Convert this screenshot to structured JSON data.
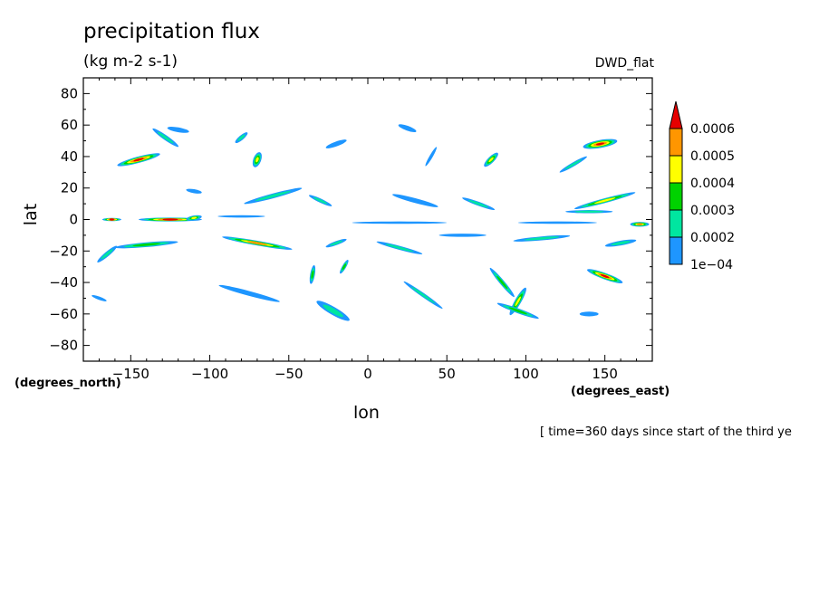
{
  "chart_data": {
    "type": "heatmap",
    "title": "precipitation flux",
    "units": "(kg m-2 s-1)",
    "dataset_label": "DWD_flat",
    "xlabel": "lon",
    "ylabel": "lat",
    "x_units_label": "(degrees_east)",
    "y_units_label": "(degrees_north)",
    "footnote": "[ time=360 days since start of the third ye",
    "xlim": [
      -180,
      180
    ],
    "ylim": [
      -90,
      90
    ],
    "x_ticks": [
      -150,
      -100,
      -50,
      0,
      50,
      100,
      150
    ],
    "y_ticks": [
      80,
      60,
      40,
      20,
      0,
      -20,
      -40,
      -60,
      -80
    ],
    "x_tick_labels": [
      "−150",
      "−100",
      "−50",
      "0",
      "50",
      "100",
      "150"
    ],
    "y_tick_labels": [
      "80",
      "60",
      "40",
      "20",
      "0",
      "−20",
      "−40",
      "−60",
      "−80"
    ],
    "colorbar": {
      "levels": [
        "1e−04",
        "0.0002",
        "0.0003",
        "0.0004",
        "0.0005",
        "0.0006"
      ],
      "colors": [
        "#1e96ff",
        "#00e6a0",
        "#00d200",
        "#ffff00",
        "#ff9600",
        "#e60000"
      ]
    },
    "features": [
      {
        "lon": -145,
        "lat": 38,
        "len": 28,
        "wid": 4,
        "ang": 15,
        "peak": 5
      },
      {
        "lon": -128,
        "lat": 52,
        "len": 20,
        "wid": 3,
        "ang": -35,
        "peak": 1
      },
      {
        "lon": -120,
        "lat": 57,
        "len": 14,
        "wid": 3,
        "ang": -10,
        "peak": 0
      },
      {
        "lon": -80,
        "lat": 52,
        "len": 10,
        "wid": 3,
        "ang": 40,
        "peak": 1
      },
      {
        "lon": -70,
        "lat": 38,
        "len": 10,
        "wid": 5,
        "ang": 70,
        "peak": 3
      },
      {
        "lon": -20,
        "lat": 48,
        "len": 14,
        "wid": 3,
        "ang": 20,
        "peak": 0
      },
      {
        "lon": 25,
        "lat": 58,
        "len": 12,
        "wid": 3,
        "ang": -20,
        "peak": 0
      },
      {
        "lon": 40,
        "lat": 40,
        "len": 14,
        "wid": 2,
        "ang": 60,
        "peak": 0
      },
      {
        "lon": 78,
        "lat": 38,
        "len": 12,
        "wid": 4,
        "ang": 45,
        "peak": 3
      },
      {
        "lon": 147,
        "lat": 48,
        "len": 22,
        "wid": 5,
        "ang": 10,
        "peak": 5
      },
      {
        "lon": 130,
        "lat": 35,
        "len": 20,
        "wid": 2.5,
        "ang": 30,
        "peak": 1
      },
      {
        "lon": -110,
        "lat": 18,
        "len": 10,
        "wid": 2.5,
        "ang": -10,
        "peak": 0
      },
      {
        "lon": -60,
        "lat": 15,
        "len": 38,
        "wid": 3,
        "ang": 15,
        "peak": 1
      },
      {
        "lon": -30,
        "lat": 12,
        "len": 16,
        "wid": 2.5,
        "ang": -25,
        "peak": 1
      },
      {
        "lon": 30,
        "lat": 12,
        "len": 30,
        "wid": 3,
        "ang": -15,
        "peak": 0
      },
      {
        "lon": 70,
        "lat": 10,
        "len": 22,
        "wid": 2.5,
        "ang": -20,
        "peak": 1
      },
      {
        "lon": 150,
        "lat": 12,
        "len": 40,
        "wid": 3,
        "ang": 15,
        "peak": 3
      },
      {
        "lon": 140,
        "lat": 5,
        "len": 30,
        "wid": 2,
        "ang": 0,
        "peak": 1
      },
      {
        "lon": -125,
        "lat": 0,
        "len": 40,
        "wid": 2.5,
        "ang": 0,
        "peak": 5
      },
      {
        "lon": -162,
        "lat": 0,
        "len": 12,
        "wid": 2,
        "ang": 0,
        "peak": 5
      },
      {
        "lon": -110,
        "lat": 1,
        "len": 10,
        "wid": 3,
        "ang": 10,
        "peak": 3
      },
      {
        "lon": 20,
        "lat": -2,
        "len": 60,
        "wid": 1.5,
        "ang": 0,
        "peak": 0
      },
      {
        "lon": 120,
        "lat": -2,
        "len": 50,
        "wid": 1.5,
        "ang": 0,
        "peak": 0
      },
      {
        "lon": -80,
        "lat": 2,
        "len": 30,
        "wid": 1.5,
        "ang": 0,
        "peak": 0
      },
      {
        "lon": 172,
        "lat": -3,
        "len": 12,
        "wid": 3,
        "ang": 0,
        "peak": 4
      },
      {
        "lon": -140,
        "lat": -16,
        "len": 40,
        "wid": 3,
        "ang": 5,
        "peak": 2
      },
      {
        "lon": -165,
        "lat": -22,
        "len": 16,
        "wid": 3,
        "ang": 40,
        "peak": 1
      },
      {
        "lon": -70,
        "lat": -15,
        "len": 45,
        "wid": 3,
        "ang": -10,
        "peak": 4
      },
      {
        "lon": -20,
        "lat": -15,
        "len": 14,
        "wid": 2.5,
        "ang": 20,
        "peak": 1
      },
      {
        "lon": 20,
        "lat": -18,
        "len": 30,
        "wid": 2.5,
        "ang": -15,
        "peak": 1
      },
      {
        "lon": 60,
        "lat": -10,
        "len": 30,
        "wid": 2,
        "ang": 0,
        "peak": 0
      },
      {
        "lon": 110,
        "lat": -12,
        "len": 36,
        "wid": 2.5,
        "ang": 5,
        "peak": 1
      },
      {
        "lon": 160,
        "lat": -15,
        "len": 20,
        "wid": 3,
        "ang": 10,
        "peak": 1
      },
      {
        "lon": -35,
        "lat": -35,
        "len": 12,
        "wid": 3,
        "ang": 80,
        "peak": 2
      },
      {
        "lon": -15,
        "lat": -30,
        "len": 10,
        "wid": 2.5,
        "ang": 60,
        "peak": 2
      },
      {
        "lon": 85,
        "lat": -40,
        "len": 24,
        "wid": 3,
        "ang": -50,
        "peak": 2
      },
      {
        "lon": 95,
        "lat": -52,
        "len": 20,
        "wid": 4,
        "ang": 60,
        "peak": 3
      },
      {
        "lon": 150,
        "lat": -36,
        "len": 24,
        "wid": 4,
        "ang": -20,
        "peak": 5
      },
      {
        "lon": -75,
        "lat": -47,
        "len": 40,
        "wid": 3,
        "ang": -15,
        "peak": 0
      },
      {
        "lon": -22,
        "lat": -58,
        "len": 24,
        "wid": 5,
        "ang": -30,
        "peak": 1
      },
      {
        "lon": 35,
        "lat": -48,
        "len": 30,
        "wid": 2.5,
        "ang": -35,
        "peak": 1
      },
      {
        "lon": 95,
        "lat": -58,
        "len": 28,
        "wid": 3,
        "ang": -20,
        "peak": 2
      },
      {
        "lon": 140,
        "lat": -60,
        "len": 12,
        "wid": 3,
        "ang": 0,
        "peak": 0
      },
      {
        "lon": -170,
        "lat": -50,
        "len": 10,
        "wid": 2,
        "ang": -20,
        "peak": 0
      }
    ]
  }
}
